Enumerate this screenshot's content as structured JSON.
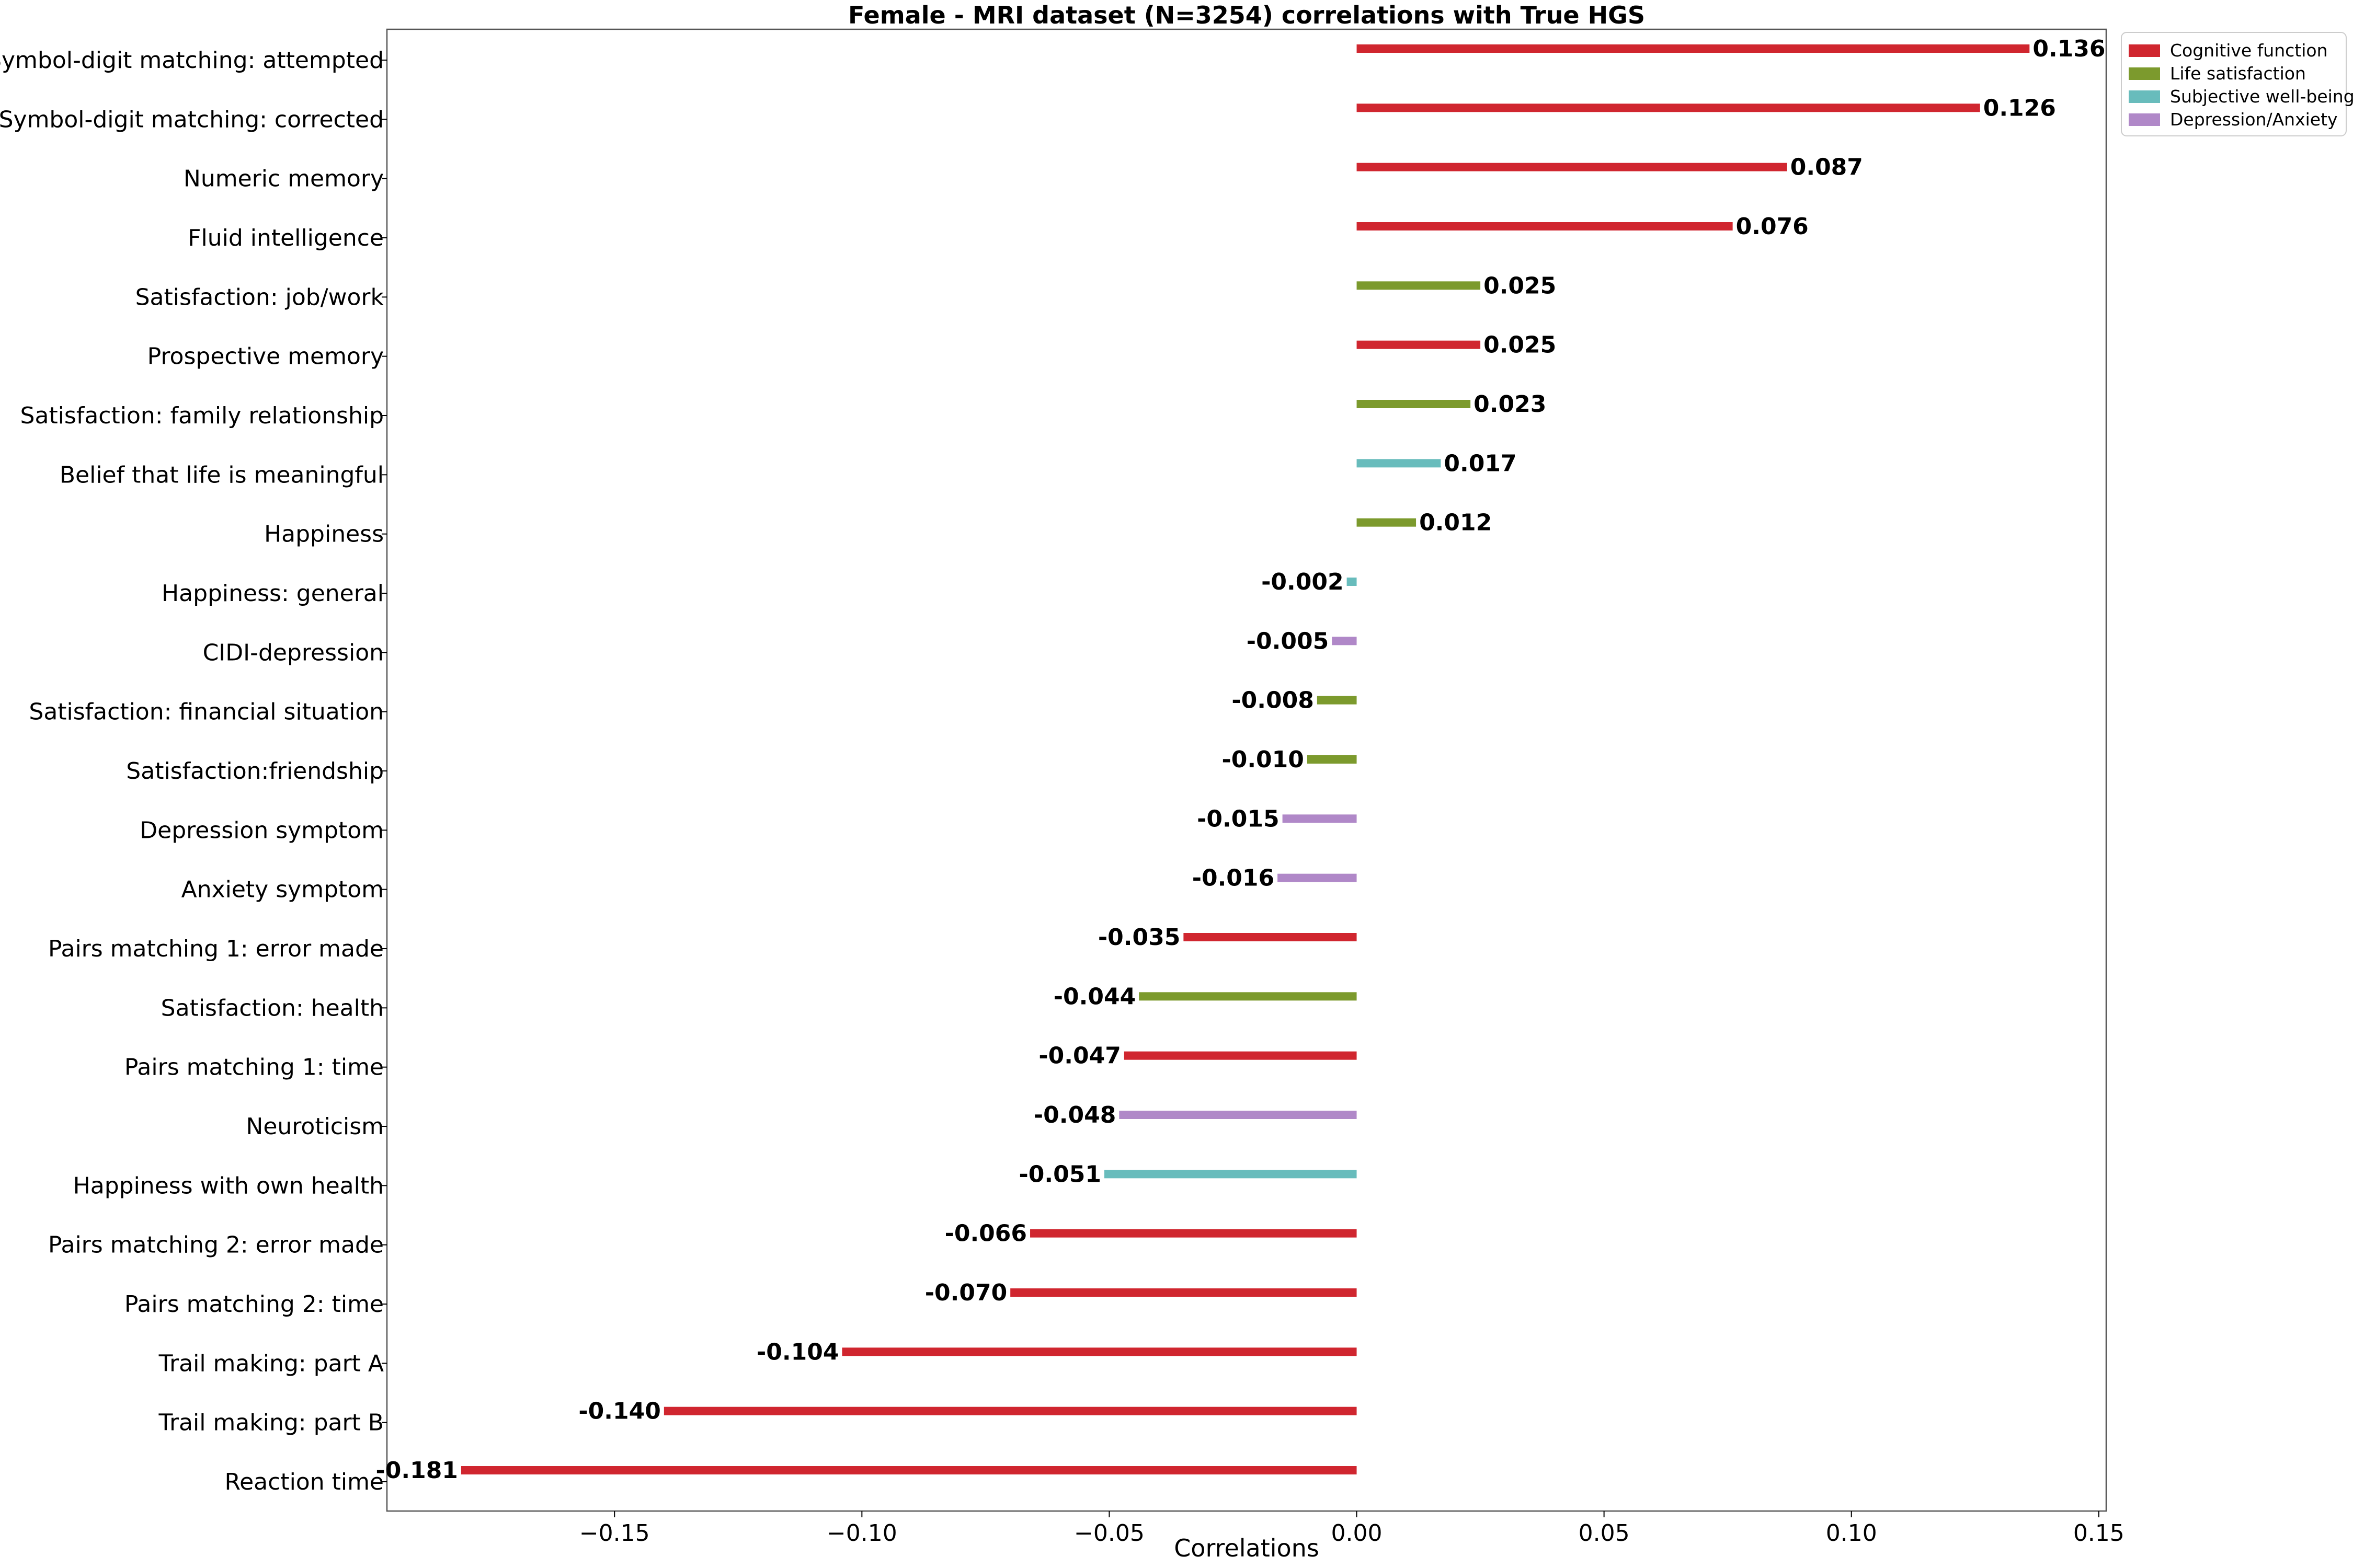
{
  "chart_data": {
    "type": "bar",
    "orientation": "horizontal",
    "title": "Female - MRI dataset (N=3254) correlations with True HGS",
    "xlabel": "Correlations",
    "ylabel": "",
    "xlim": [
      -0.196,
      0.1515
    ],
    "xticks": [
      -0.15,
      -0.1,
      -0.05,
      0.0,
      0.05,
      0.1,
      0.15
    ],
    "xtick_labels": [
      "−0.15",
      "−0.10",
      "−0.05",
      "0.00",
      "0.05",
      "0.10",
      "0.15"
    ],
    "grid": false,
    "legend": {
      "position": "outside-top-right",
      "entries": [
        {
          "name": "Cognitive function",
          "color": "#d0262f"
        },
        {
          "name": "Life satisfaction",
          "color": "#7c9a2d"
        },
        {
          "name": "Subjective well-being",
          "color": "#68bcbc"
        },
        {
          "name": "Depression/Anxiety",
          "color": "#b088c8"
        }
      ]
    },
    "categories": [
      "Symbol-digit matching: attempted",
      "Symbol-digit matching: corrected",
      "Numeric memory",
      "Fluid intelligence",
      "Satisfaction: job/work",
      "Prospective memory",
      "Satisfaction: family relationship",
      "Belief that life is meaningful",
      "Happiness",
      "Happiness: general",
      "CIDI-depression",
      "Satisfaction: financial situation",
      "Satisfaction:friendship",
      "Depression symptom",
      "Anxiety symptom",
      "Pairs matching 1: error made",
      "Satisfaction: health",
      "Pairs matching 1: time",
      "Neuroticism",
      "Happiness with own health",
      "Pairs matching 2: error made",
      "Pairs matching 2: time",
      "Trail making: part A",
      "Trail making: part B",
      "Reaction time"
    ],
    "bars": [
      {
        "value": 0.136,
        "label": "0.136",
        "group": "Cognitive function"
      },
      {
        "value": 0.126,
        "label": "0.126",
        "group": "Cognitive function"
      },
      {
        "value": 0.087,
        "label": "0.087",
        "group": "Cognitive function"
      },
      {
        "value": 0.076,
        "label": "0.076",
        "group": "Cognitive function"
      },
      {
        "value": 0.025,
        "label": "0.025",
        "group": "Life satisfaction"
      },
      {
        "value": 0.025,
        "label": "0.025",
        "group": "Cognitive function"
      },
      {
        "value": 0.023,
        "label": "0.023",
        "group": "Life satisfaction"
      },
      {
        "value": 0.017,
        "label": "0.017",
        "group": "Subjective well-being"
      },
      {
        "value": 0.012,
        "label": "0.012",
        "group": "Life satisfaction"
      },
      {
        "value": -0.002,
        "label": "-0.002",
        "group": "Subjective well-being"
      },
      {
        "value": -0.005,
        "label": "-0.005",
        "group": "Depression/Anxiety"
      },
      {
        "value": -0.008,
        "label": "-0.008",
        "group": "Life satisfaction"
      },
      {
        "value": -0.01,
        "label": "-0.010",
        "group": "Life satisfaction"
      },
      {
        "value": -0.015,
        "label": "-0.015",
        "group": "Depression/Anxiety"
      },
      {
        "value": -0.016,
        "label": "-0.016",
        "group": "Depression/Anxiety"
      },
      {
        "value": -0.035,
        "label": "-0.035",
        "group": "Cognitive function"
      },
      {
        "value": -0.044,
        "label": "-0.044",
        "group": "Life satisfaction"
      },
      {
        "value": -0.047,
        "label": "-0.047",
        "group": "Cognitive function"
      },
      {
        "value": -0.048,
        "label": "-0.048",
        "group": "Depression/Anxiety"
      },
      {
        "value": -0.051,
        "label": "-0.051",
        "group": "Subjective well-being"
      },
      {
        "value": -0.066,
        "label": "-0.066",
        "group": "Cognitive function"
      },
      {
        "value": -0.07,
        "label": "-0.070",
        "group": "Cognitive function"
      },
      {
        "value": -0.104,
        "label": "-0.104",
        "group": "Cognitive function"
      },
      {
        "value": -0.14,
        "label": "-0.140",
        "group": "Cognitive function"
      },
      {
        "value": -0.181,
        "label": "-0.181",
        "group": "Cognitive function"
      }
    ]
  }
}
